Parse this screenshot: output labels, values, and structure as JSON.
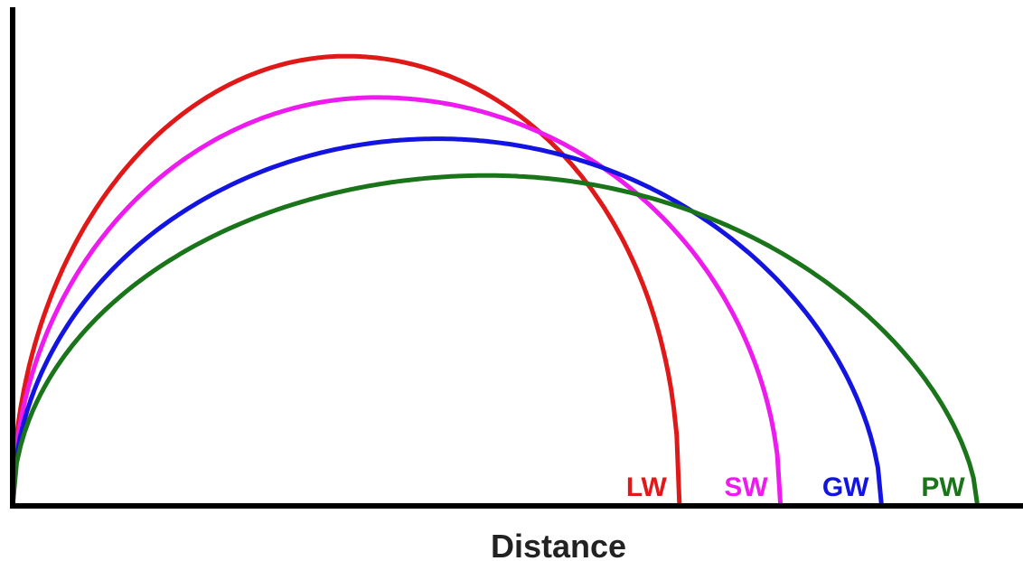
{
  "chart_data": {
    "type": "line",
    "title": "",
    "xlabel": "Distance",
    "ylabel": "",
    "grid": false,
    "legend": "none",
    "xlim": [
      0,
      1
    ],
    "ylim": [
      0,
      1
    ],
    "series": [
      {
        "name": "LW",
        "color": "#e01818",
        "distance": 0.66,
        "apex_x": 0.33,
        "apex_height": 0.98,
        "curve_exponent": 0.45
      },
      {
        "name": "SW",
        "color": "#ee1bee",
        "distance": 0.76,
        "apex_x": 0.36,
        "apex_height": 0.89,
        "curve_exponent": 0.5
      },
      {
        "name": "GW",
        "color": "#1414e0",
        "distance": 0.86,
        "apex_x": 0.42,
        "apex_height": 0.8,
        "curve_exponent": 0.55
      },
      {
        "name": "PW",
        "color": "#1a741a",
        "distance": 0.955,
        "apex_x": 0.47,
        "apex_height": 0.72,
        "curve_exponent": 0.6
      }
    ]
  }
}
